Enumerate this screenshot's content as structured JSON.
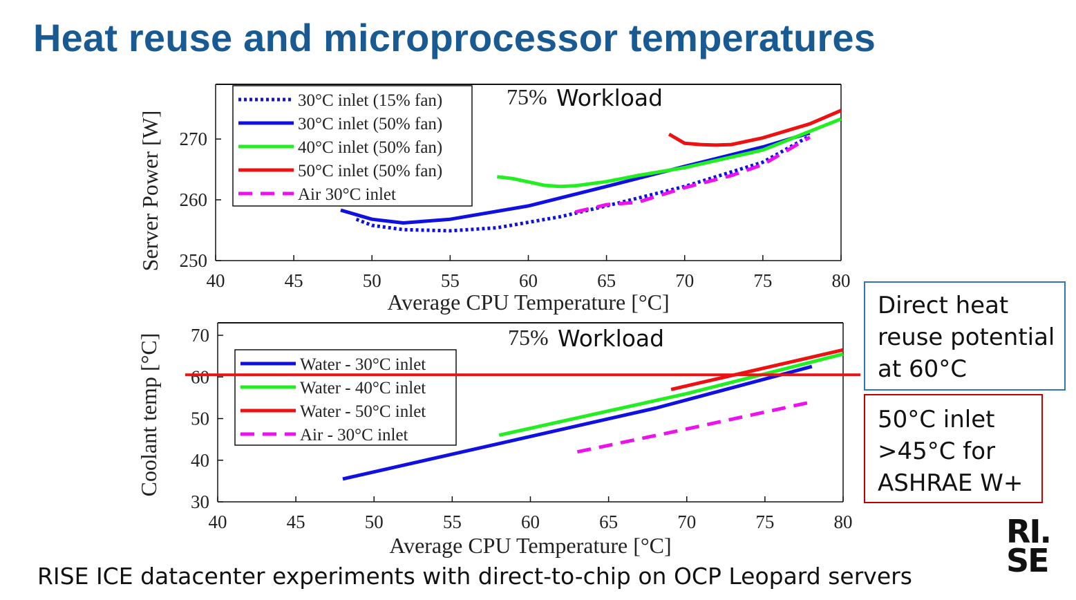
{
  "slide": {
    "title": "Heat reuse and microprocessor temperatures",
    "caption": "RISE ICE datacenter experiments with direct-to-chip on OCP Leopard servers",
    "logo": {
      "line1": "RI.",
      "line2": "SE"
    }
  },
  "callouts": {
    "blue": {
      "lines": [
        "Direct heat",
        "reuse potential",
        "at 60°C"
      ],
      "border_color": "#2e75b6"
    },
    "red": {
      "lines": [
        "50°C inlet",
        ">45°C for",
        "ASHRAE W+"
      ],
      "border_color": "#c00000"
    }
  },
  "chart_data": [
    {
      "type": "line",
      "title": "75% Workload",
      "xlabel": "Average CPU Temperature [°C]",
      "ylabel": "Server Power [W]",
      "xlim": [
        40,
        80
      ],
      "ylim": [
        250,
        279
      ],
      "xticks": [
        40,
        45,
        50,
        55,
        60,
        65,
        70,
        75,
        80
      ],
      "yticks": [
        250,
        260,
        270
      ],
      "grid": false,
      "legend_position": "top-left",
      "series": [
        {
          "name": "30°C inlet (15% fan)",
          "color": "#1010e0",
          "style": "dotted",
          "points": [
            [
              49,
              256.8
            ],
            [
              50,
              255.8
            ],
            [
              52,
              255.1
            ],
            [
              55,
              254.9
            ],
            [
              58,
              255.4
            ],
            [
              62,
              257.2
            ],
            [
              65,
              259
            ],
            [
              70,
              262.2
            ],
            [
              75,
              266.2
            ],
            [
              78,
              270.5
            ]
          ]
        },
        {
          "name": "30°C inlet (50% fan)",
          "color": "#1010e0",
          "style": "solid",
          "points": [
            [
              48,
              258.3
            ],
            [
              50,
              256.8
            ],
            [
              52,
              256.2
            ],
            [
              55,
              256.8
            ],
            [
              60,
              259
            ],
            [
              65,
              262.2
            ],
            [
              70,
              265.5
            ],
            [
              75,
              268.7
            ],
            [
              78,
              271
            ]
          ]
        },
        {
          "name": "40°C inlet (50% fan)",
          "color": "#22ee22",
          "style": "solid",
          "points": [
            [
              58,
              263.8
            ],
            [
              59,
              263.5
            ],
            [
              61,
              262.4
            ],
            [
              62,
              262.2
            ],
            [
              63,
              262.3
            ],
            [
              65,
              263
            ],
            [
              67,
              264
            ],
            [
              70,
              265.3
            ],
            [
              75,
              268.2
            ],
            [
              80,
              273.3
            ]
          ]
        },
        {
          "name": "50°C inlet (50% fan)",
          "color": "#ee1111",
          "style": "solid",
          "points": [
            [
              69,
              270.8
            ],
            [
              70,
              269.3
            ],
            [
              71,
              269.1
            ],
            [
              72,
              269.0
            ],
            [
              73,
              269.1
            ],
            [
              75,
              270.2
            ],
            [
              78,
              272.5
            ],
            [
              80,
              274.7
            ]
          ]
        },
        {
          "name": "Air 30°C inlet",
          "color": "#ee11ee",
          "style": "dashed",
          "points": [
            [
              63,
              258
            ],
            [
              65,
              259.2
            ],
            [
              67,
              259.6
            ],
            [
              70,
              262
            ],
            [
              73,
              264
            ],
            [
              75,
              265.8
            ],
            [
              78,
              270.3
            ]
          ]
        }
      ]
    },
    {
      "type": "line",
      "title": "75% Workload",
      "xlabel": "Average CPU Temperature [°C]",
      "ylabel": "Coolant temp [°C]",
      "xlim": [
        40,
        80
      ],
      "ylim": [
        30,
        73
      ],
      "xticks": [
        40,
        45,
        50,
        55,
        60,
        65,
        70,
        75,
        80
      ],
      "yticks": [
        30,
        40,
        50,
        60,
        70
      ],
      "grid": false,
      "legend_position": "top-left",
      "reference_line": {
        "y": 60.5,
        "color": "#ee1111"
      },
      "series": [
        {
          "name": "Water - 30°C inlet",
          "color": "#1010e0",
          "style": "solid",
          "points": [
            [
              48,
              35.5
            ],
            [
              58,
              44
            ],
            [
              68,
              52.5
            ],
            [
              78,
              62.5
            ]
          ]
        },
        {
          "name": "Water - 40°C inlet",
          "color": "#22ee22",
          "style": "solid",
          "points": [
            [
              58,
              46
            ],
            [
              70,
              56
            ],
            [
              80,
              65.5
            ]
          ]
        },
        {
          "name": "Water - 50°C inlet",
          "color": "#ee1111",
          "style": "solid",
          "points": [
            [
              69,
              57
            ],
            [
              80,
              66.5
            ]
          ]
        },
        {
          "name": "Air - 30°C inlet",
          "color": "#ee11ee",
          "style": "dashed",
          "points": [
            [
              63,
              42
            ],
            [
              70,
              47.5
            ],
            [
              78,
              54
            ]
          ]
        }
      ]
    }
  ]
}
